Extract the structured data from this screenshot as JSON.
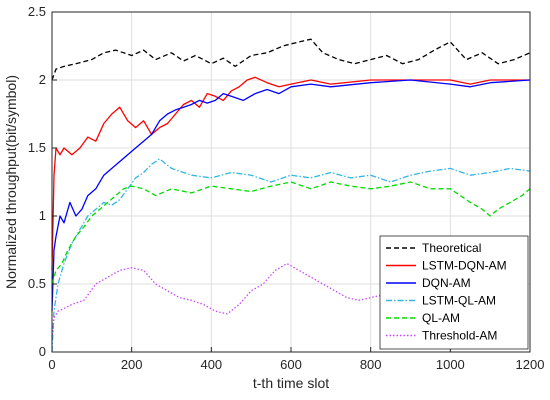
{
  "chart_data": {
    "type": "line",
    "xlabel": "t-th time slot",
    "ylabel": "Normalized throughput(bit/symbol)",
    "xlim": [
      0,
      1200
    ],
    "ylim": [
      0,
      2.5
    ],
    "xticks": [
      "0",
      "200",
      "400",
      "600",
      "800",
      "1000",
      "1200"
    ],
    "yticks": [
      "0",
      "0.5",
      "1",
      "1.5",
      "2",
      "2.5"
    ],
    "grid": true,
    "legend_position": "bottom-right",
    "series": [
      {
        "name": "Theoretical",
        "color": "#000000",
        "dash": "dashed",
        "x": [
          0,
          10,
          30,
          60,
          100,
          130,
          160,
          200,
          230,
          260,
          300,
          330,
          360,
          400,
          430,
          460,
          500,
          540,
          580,
          620,
          650,
          680,
          720,
          760,
          800,
          840,
          880,
          920,
          960,
          1000,
          1040,
          1080,
          1120,
          1160,
          1200
        ],
        "y": [
          2.0,
          2.08,
          2.1,
          2.12,
          2.15,
          2.2,
          2.22,
          2.18,
          2.22,
          2.15,
          2.2,
          2.14,
          2.18,
          2.12,
          2.16,
          2.1,
          2.18,
          2.2,
          2.25,
          2.28,
          2.3,
          2.2,
          2.15,
          2.12,
          2.15,
          2.18,
          2.12,
          2.15,
          2.22,
          2.28,
          2.15,
          2.2,
          2.12,
          2.15,
          2.2
        ]
      },
      {
        "name": "LSTM-DQN-AM",
        "color": "#ff0000",
        "dash": "solid",
        "x": [
          0,
          5,
          10,
          20,
          30,
          50,
          70,
          90,
          110,
          130,
          150,
          170,
          190,
          210,
          230,
          250,
          270,
          290,
          310,
          330,
          350,
          370,
          390,
          410,
          430,
          450,
          470,
          490,
          510,
          540,
          570,
          600,
          650,
          700,
          800,
          900,
          1000,
          1050,
          1100,
          1200
        ],
        "y": [
          0.6,
          1.3,
          1.5,
          1.45,
          1.5,
          1.45,
          1.5,
          1.58,
          1.55,
          1.68,
          1.75,
          1.8,
          1.7,
          1.65,
          1.7,
          1.6,
          1.65,
          1.68,
          1.75,
          1.82,
          1.85,
          1.8,
          1.9,
          1.88,
          1.85,
          1.92,
          1.95,
          2.0,
          2.02,
          1.98,
          1.95,
          1.97,
          2.0,
          1.97,
          2.0,
          2.0,
          2.0,
          1.97,
          2.0,
          2.0
        ]
      },
      {
        "name": "DQN-AM",
        "color": "#0000ff",
        "dash": "solid",
        "x": [
          0,
          5,
          10,
          20,
          30,
          45,
          60,
          75,
          90,
          110,
          130,
          150,
          170,
          190,
          210,
          230,
          250,
          270,
          290,
          310,
          330,
          350,
          370,
          390,
          410,
          430,
          450,
          480,
          510,
          540,
          570,
          600,
          650,
          700,
          800,
          900,
          1000,
          1050,
          1100,
          1200
        ],
        "y": [
          0.3,
          0.75,
          0.85,
          1.0,
          0.95,
          1.1,
          1.0,
          1.05,
          1.15,
          1.2,
          1.3,
          1.35,
          1.4,
          1.45,
          1.5,
          1.55,
          1.6,
          1.7,
          1.75,
          1.78,
          1.8,
          1.82,
          1.85,
          1.83,
          1.85,
          1.9,
          1.88,
          1.85,
          1.9,
          1.93,
          1.9,
          1.95,
          1.97,
          1.95,
          1.98,
          2.0,
          1.97,
          1.95,
          1.98,
          2.0
        ]
      },
      {
        "name": "LSTM-QL-AM",
        "color": "#33b5e5",
        "dash": "dashdot",
        "x": [
          0,
          5,
          15,
          30,
          50,
          70,
          90,
          110,
          130,
          150,
          170,
          190,
          210,
          230,
          250,
          270,
          300,
          350,
          400,
          450,
          500,
          550,
          600,
          650,
          700,
          750,
          800,
          850,
          900,
          950,
          1000,
          1050,
          1100,
          1150,
          1200
        ],
        "y": [
          0.0,
          0.3,
          0.5,
          0.65,
          0.8,
          0.9,
          1.0,
          1.05,
          1.1,
          1.08,
          1.12,
          1.2,
          1.28,
          1.32,
          1.38,
          1.42,
          1.35,
          1.3,
          1.28,
          1.32,
          1.3,
          1.25,
          1.3,
          1.28,
          1.32,
          1.28,
          1.3,
          1.25,
          1.3,
          1.33,
          1.35,
          1.3,
          1.32,
          1.35,
          1.33
        ]
      },
      {
        "name": "QL-AM",
        "color": "#00dd00",
        "dash": "dashed",
        "x": [
          0,
          10,
          25,
          40,
          60,
          80,
          100,
          120,
          140,
          160,
          180,
          200,
          230,
          260,
          300,
          350,
          400,
          450,
          500,
          550,
          600,
          650,
          700,
          750,
          800,
          850,
          900,
          950,
          1000,
          1050,
          1080,
          1100,
          1120,
          1150,
          1180,
          1200
        ],
        "y": [
          0.5,
          0.6,
          0.65,
          0.75,
          0.85,
          0.92,
          1.0,
          1.05,
          1.1,
          1.15,
          1.2,
          1.22,
          1.2,
          1.15,
          1.2,
          1.17,
          1.22,
          1.2,
          1.18,
          1.22,
          1.25,
          1.2,
          1.25,
          1.22,
          1.2,
          1.22,
          1.25,
          1.2,
          1.2,
          1.1,
          1.05,
          1.0,
          1.05,
          1.1,
          1.15,
          1.2
        ]
      },
      {
        "name": "Threshold-AM",
        "color": "#cc44ff",
        "dash": "dotted",
        "x": [
          0,
          5,
          15,
          30,
          50,
          80,
          110,
          140,
          170,
          200,
          230,
          260,
          290,
          320,
          350,
          380,
          410,
          440,
          470,
          500,
          530,
          560,
          590,
          620,
          650,
          680,
          710,
          740,
          770,
          800,
          830,
          860,
          890,
          920,
          950,
          980,
          1010,
          1040,
          1070,
          1100,
          1130,
          1160,
          1200
        ],
        "y": [
          0.1,
          0.25,
          0.3,
          0.32,
          0.35,
          0.38,
          0.5,
          0.55,
          0.6,
          0.62,
          0.6,
          0.5,
          0.45,
          0.4,
          0.38,
          0.35,
          0.3,
          0.28,
          0.35,
          0.45,
          0.5,
          0.6,
          0.65,
          0.6,
          0.55,
          0.5,
          0.45,
          0.4,
          0.38,
          0.4,
          0.42,
          0.45,
          0.4,
          0.38,
          0.42,
          0.48,
          0.45,
          0.42,
          0.4,
          0.45,
          0.42,
          0.45,
          0.52
        ]
      }
    ]
  }
}
